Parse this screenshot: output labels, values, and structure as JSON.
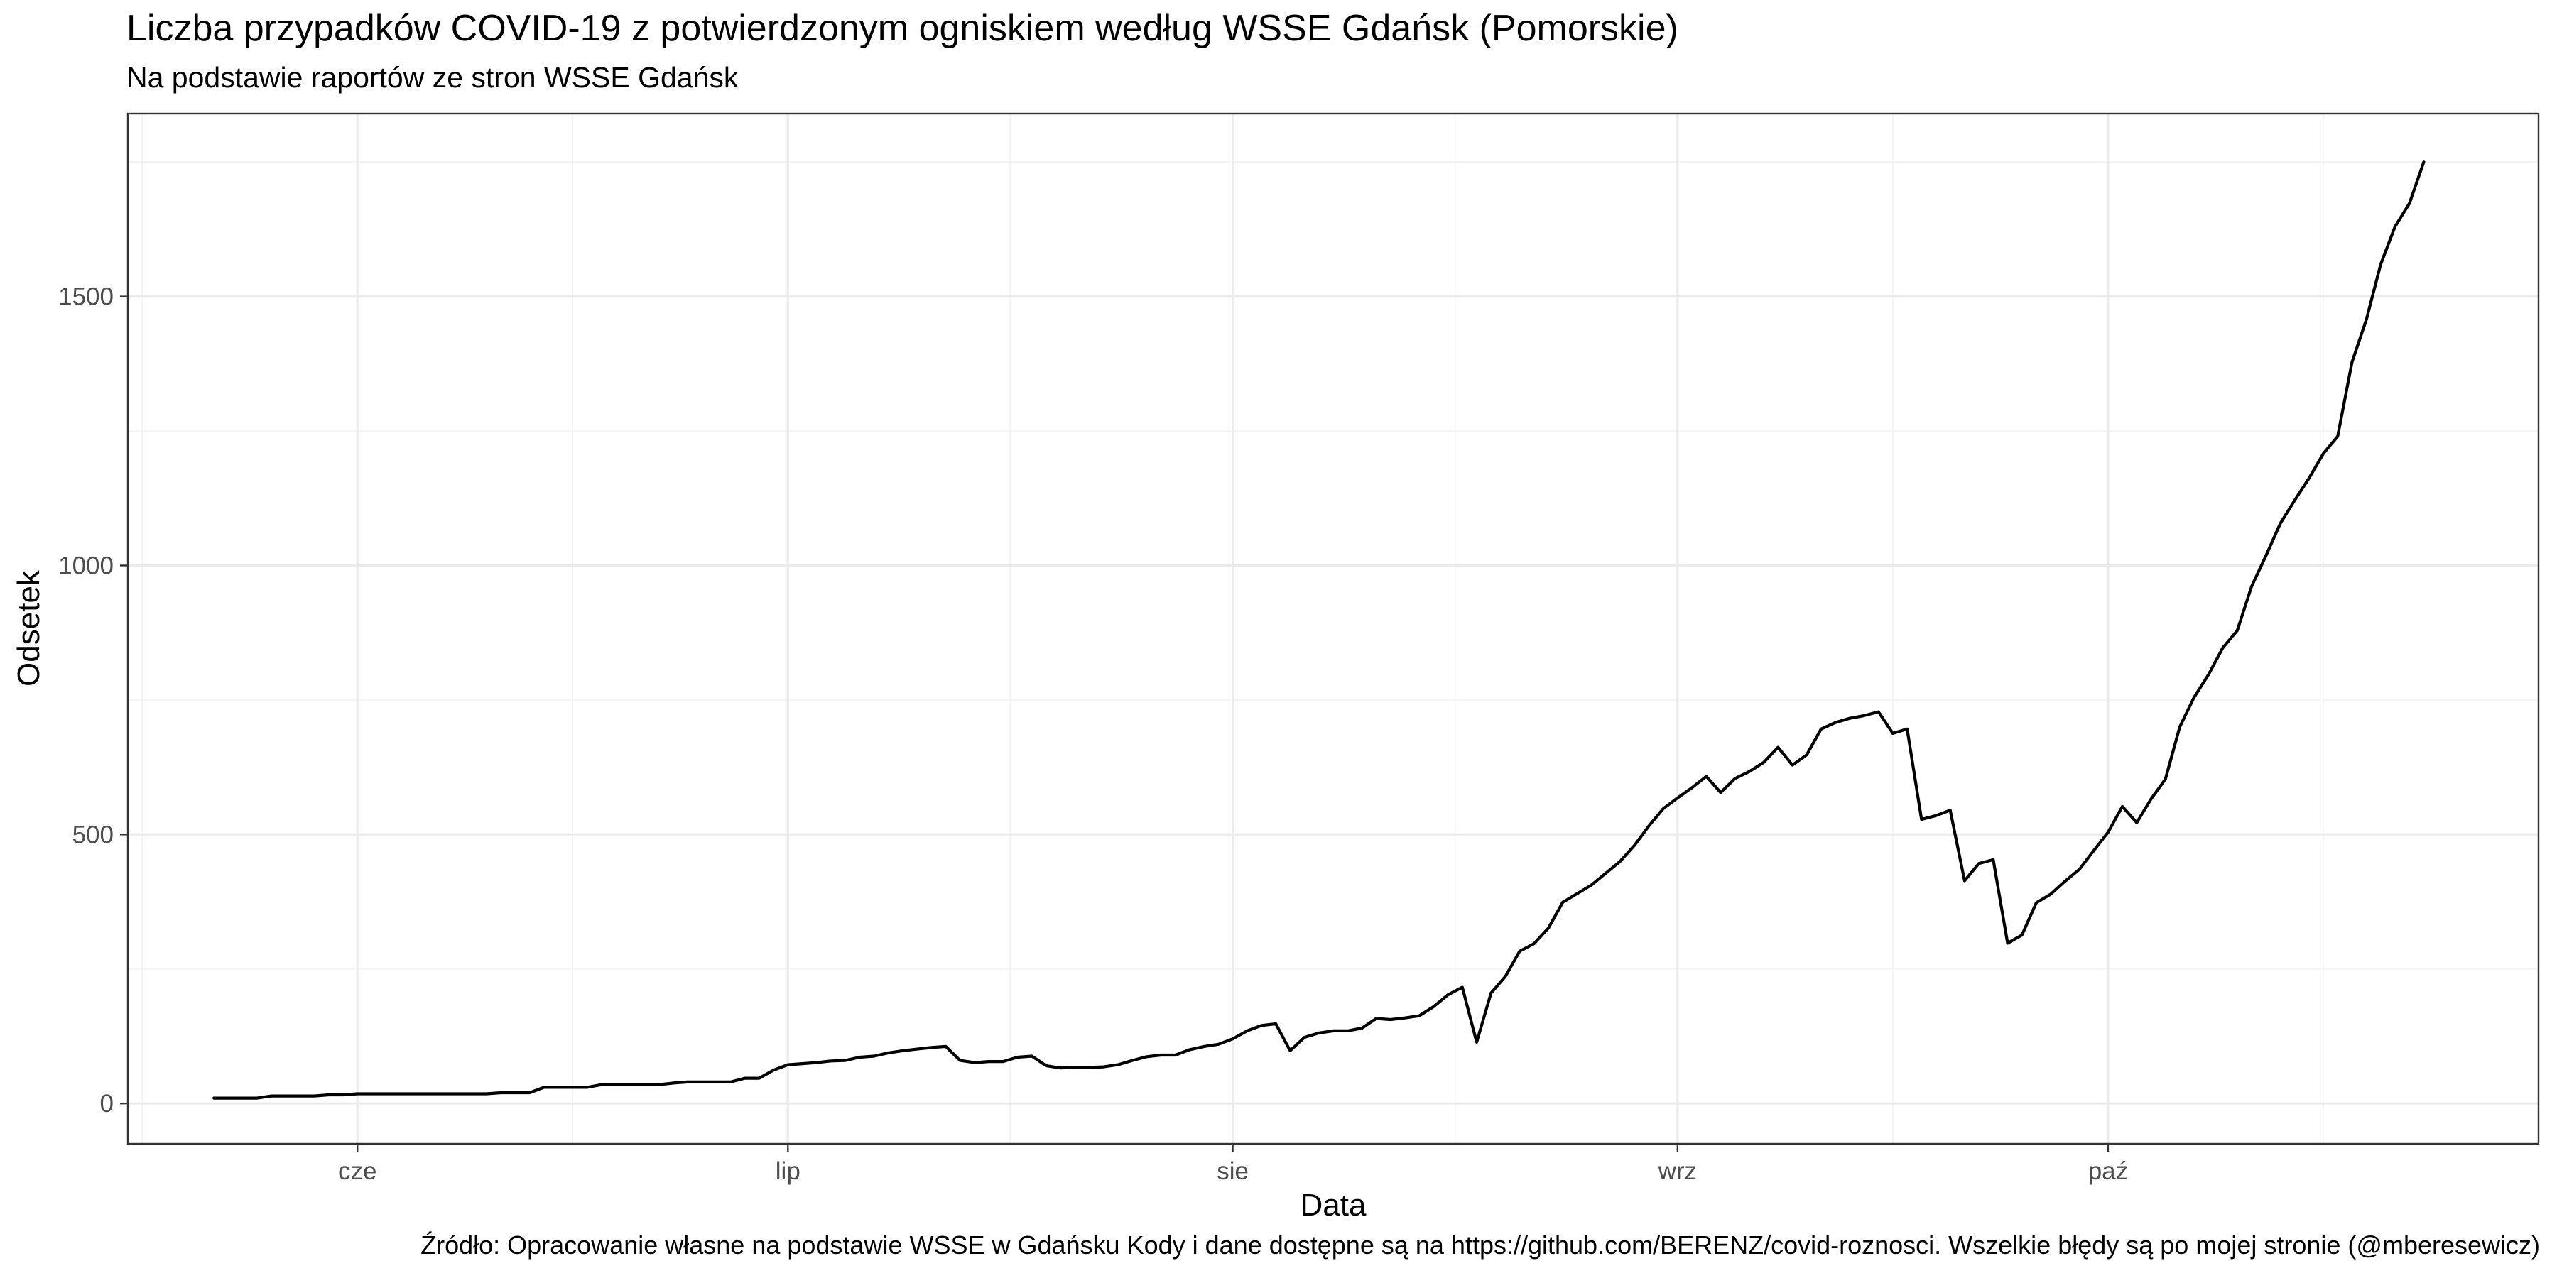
{
  "chart_data": {
    "type": "line",
    "title": "Liczba przypadków COVID-19 z potwierdzonym ogniskiem według WSSE Gdańsk (Pomorskie)",
    "subtitle": "Na podstawie raportów ze stron WSSE Gdańsk",
    "caption": "Źródło: Opracowanie własne na podstawie WSSE w Gdańsku Kody i dane dostępne są na https://github.com/BERENZ/covid-roznosci. Wszelkie błędy są po mojej stronie (@mberesewicz)",
    "xlabel": "Data",
    "ylabel": "Odsetek",
    "x_ticks": [
      {
        "label": "cze",
        "date": "2020-06-01"
      },
      {
        "label": "lip",
        "date": "2020-07-01"
      },
      {
        "label": "sie",
        "date": "2020-08-01"
      },
      {
        "label": "wrz",
        "date": "2020-09-01"
      },
      {
        "label": "paź",
        "date": "2020-10-01"
      }
    ],
    "y_ticks": [
      0,
      500,
      1000,
      1500
    ],
    "xlim": [
      "2020-05-16",
      "2020-10-31"
    ],
    "ylim": [
      -75,
      1840
    ],
    "grid": true,
    "series": [
      {
        "color": "#000000",
        "points": [
          {
            "x": "2020-05-22",
            "y": 10
          },
          {
            "x": "2020-05-23",
            "y": 10
          },
          {
            "x": "2020-05-24",
            "y": 10
          },
          {
            "x": "2020-05-25",
            "y": 10
          },
          {
            "x": "2020-05-26",
            "y": 14
          },
          {
            "x": "2020-05-27",
            "y": 14
          },
          {
            "x": "2020-05-28",
            "y": 14
          },
          {
            "x": "2020-05-29",
            "y": 14
          },
          {
            "x": "2020-05-30",
            "y": 16
          },
          {
            "x": "2020-05-31",
            "y": 16
          },
          {
            "x": "2020-06-01",
            "y": 18
          },
          {
            "x": "2020-06-02",
            "y": 18
          },
          {
            "x": "2020-06-03",
            "y": 18
          },
          {
            "x": "2020-06-04",
            "y": 18
          },
          {
            "x": "2020-06-05",
            "y": 18
          },
          {
            "x": "2020-06-06",
            "y": 18
          },
          {
            "x": "2020-06-07",
            "y": 18
          },
          {
            "x": "2020-06-08",
            "y": 18
          },
          {
            "x": "2020-06-09",
            "y": 18
          },
          {
            "x": "2020-06-10",
            "y": 18
          },
          {
            "x": "2020-06-11",
            "y": 20
          },
          {
            "x": "2020-06-12",
            "y": 20
          },
          {
            "x": "2020-06-13",
            "y": 20
          },
          {
            "x": "2020-06-14",
            "y": 30
          },
          {
            "x": "2020-06-15",
            "y": 30
          },
          {
            "x": "2020-06-16",
            "y": 30
          },
          {
            "x": "2020-06-17",
            "y": 30
          },
          {
            "x": "2020-06-18",
            "y": 35
          },
          {
            "x": "2020-06-19",
            "y": 35
          },
          {
            "x": "2020-06-20",
            "y": 35
          },
          {
            "x": "2020-06-21",
            "y": 35
          },
          {
            "x": "2020-06-22",
            "y": 35
          },
          {
            "x": "2020-06-23",
            "y": 38
          },
          {
            "x": "2020-06-24",
            "y": 40
          },
          {
            "x": "2020-06-25",
            "y": 40
          },
          {
            "x": "2020-06-26",
            "y": 40
          },
          {
            "x": "2020-06-27",
            "y": 40
          },
          {
            "x": "2020-06-28",
            "y": 47
          },
          {
            "x": "2020-06-29",
            "y": 47
          },
          {
            "x": "2020-06-30",
            "y": 62
          },
          {
            "x": "2020-07-01",
            "y": 72
          },
          {
            "x": "2020-07-02",
            "y": 74
          },
          {
            "x": "2020-07-03",
            "y": 76
          },
          {
            "x": "2020-07-04",
            "y": 79
          },
          {
            "x": "2020-07-05",
            "y": 80
          },
          {
            "x": "2020-07-06",
            "y": 86
          },
          {
            "x": "2020-07-07",
            "y": 88
          },
          {
            "x": "2020-07-08",
            "y": 94
          },
          {
            "x": "2020-07-09",
            "y": 98
          },
          {
            "x": "2020-07-10",
            "y": 101
          },
          {
            "x": "2020-07-11",
            "y": 104
          },
          {
            "x": "2020-07-12",
            "y": 106
          },
          {
            "x": "2020-07-13",
            "y": 80
          },
          {
            "x": "2020-07-14",
            "y": 76
          },
          {
            "x": "2020-07-15",
            "y": 78
          },
          {
            "x": "2020-07-16",
            "y": 78
          },
          {
            "x": "2020-07-17",
            "y": 86
          },
          {
            "x": "2020-07-18",
            "y": 88
          },
          {
            "x": "2020-07-19",
            "y": 70
          },
          {
            "x": "2020-07-20",
            "y": 66
          },
          {
            "x": "2020-07-21",
            "y": 67
          },
          {
            "x": "2020-07-22",
            "y": 67
          },
          {
            "x": "2020-07-23",
            "y": 68
          },
          {
            "x": "2020-07-24",
            "y": 72
          },
          {
            "x": "2020-07-25",
            "y": 80
          },
          {
            "x": "2020-07-26",
            "y": 87
          },
          {
            "x": "2020-07-27",
            "y": 90
          },
          {
            "x": "2020-07-28",
            "y": 90
          },
          {
            "x": "2020-07-29",
            "y": 100
          },
          {
            "x": "2020-07-30",
            "y": 106
          },
          {
            "x": "2020-07-31",
            "y": 110
          },
          {
            "x": "2020-08-01",
            "y": 120
          },
          {
            "x": "2020-08-02",
            "y": 135
          },
          {
            "x": "2020-08-03",
            "y": 145
          },
          {
            "x": "2020-08-04",
            "y": 148
          },
          {
            "x": "2020-08-05",
            "y": 98
          },
          {
            "x": "2020-08-06",
            "y": 123
          },
          {
            "x": "2020-08-07",
            "y": 131
          },
          {
            "x": "2020-08-08",
            "y": 135
          },
          {
            "x": "2020-08-09",
            "y": 135
          },
          {
            "x": "2020-08-10",
            "y": 140
          },
          {
            "x": "2020-08-11",
            "y": 158
          },
          {
            "x": "2020-08-12",
            "y": 156
          },
          {
            "x": "2020-08-13",
            "y": 159
          },
          {
            "x": "2020-08-14",
            "y": 163
          },
          {
            "x": "2020-08-15",
            "y": 180
          },
          {
            "x": "2020-08-16",
            "y": 202
          },
          {
            "x": "2020-08-17",
            "y": 216
          },
          {
            "x": "2020-08-18",
            "y": 114
          },
          {
            "x": "2020-08-19",
            "y": 205
          },
          {
            "x": "2020-08-20",
            "y": 236
          },
          {
            "x": "2020-08-21",
            "y": 283
          },
          {
            "x": "2020-08-22",
            "y": 297
          },
          {
            "x": "2020-08-23",
            "y": 326
          },
          {
            "x": "2020-08-24",
            "y": 374
          },
          {
            "x": "2020-08-25",
            "y": 390
          },
          {
            "x": "2020-08-26",
            "y": 406
          },
          {
            "x": "2020-08-27",
            "y": 428
          },
          {
            "x": "2020-08-28",
            "y": 450
          },
          {
            "x": "2020-08-29",
            "y": 480
          },
          {
            "x": "2020-08-30",
            "y": 516
          },
          {
            "x": "2020-08-31",
            "y": 548
          },
          {
            "x": "2020-09-01",
            "y": 568
          },
          {
            "x": "2020-09-02",
            "y": 587
          },
          {
            "x": "2020-09-03",
            "y": 608
          },
          {
            "x": "2020-09-04",
            "y": 578
          },
          {
            "x": "2020-09-05",
            "y": 604
          },
          {
            "x": "2020-09-06",
            "y": 617
          },
          {
            "x": "2020-09-07",
            "y": 634
          },
          {
            "x": "2020-09-08",
            "y": 662
          },
          {
            "x": "2020-09-09",
            "y": 629
          },
          {
            "x": "2020-09-10",
            "y": 648
          },
          {
            "x": "2020-09-11",
            "y": 696
          },
          {
            "x": "2020-09-12",
            "y": 708
          },
          {
            "x": "2020-09-13",
            "y": 716
          },
          {
            "x": "2020-09-14",
            "y": 721
          },
          {
            "x": "2020-09-15",
            "y": 728
          },
          {
            "x": "2020-09-16",
            "y": 688
          },
          {
            "x": "2020-09-17",
            "y": 696
          },
          {
            "x": "2020-09-18",
            "y": 528
          },
          {
            "x": "2020-09-19",
            "y": 535
          },
          {
            "x": "2020-09-20",
            "y": 545
          },
          {
            "x": "2020-09-21",
            "y": 414
          },
          {
            "x": "2020-09-22",
            "y": 446
          },
          {
            "x": "2020-09-23",
            "y": 453
          },
          {
            "x": "2020-09-24",
            "y": 298
          },
          {
            "x": "2020-09-25",
            "y": 313
          },
          {
            "x": "2020-09-26",
            "y": 373
          },
          {
            "x": "2020-09-27",
            "y": 389
          },
          {
            "x": "2020-09-28",
            "y": 413
          },
          {
            "x": "2020-09-29",
            "y": 435
          },
          {
            "x": "2020-09-30",
            "y": 470
          },
          {
            "x": "2020-10-01",
            "y": 504
          },
          {
            "x": "2020-10-02",
            "y": 552
          },
          {
            "x": "2020-10-03",
            "y": 522
          },
          {
            "x": "2020-10-04",
            "y": 566
          },
          {
            "x": "2020-10-05",
            "y": 603
          },
          {
            "x": "2020-10-06",
            "y": 700
          },
          {
            "x": "2020-10-07",
            "y": 755
          },
          {
            "x": "2020-10-08",
            "y": 797
          },
          {
            "x": "2020-10-09",
            "y": 847
          },
          {
            "x": "2020-10-10",
            "y": 879
          },
          {
            "x": "2020-10-11",
            "y": 961
          },
          {
            "x": "2020-10-12",
            "y": 1018
          },
          {
            "x": "2020-10-13",
            "y": 1078
          },
          {
            "x": "2020-10-14",
            "y": 1121
          },
          {
            "x": "2020-10-15",
            "y": 1162
          },
          {
            "x": "2020-10-16",
            "y": 1208
          },
          {
            "x": "2020-10-17",
            "y": 1240
          },
          {
            "x": "2020-10-18",
            "y": 1378
          },
          {
            "x": "2020-10-19",
            "y": 1457
          },
          {
            "x": "2020-10-20",
            "y": 1560
          },
          {
            "x": "2020-10-21",
            "y": 1630
          },
          {
            "x": "2020-10-22",
            "y": 1673
          },
          {
            "x": "2020-10-23",
            "y": 1750
          }
        ]
      }
    ]
  }
}
